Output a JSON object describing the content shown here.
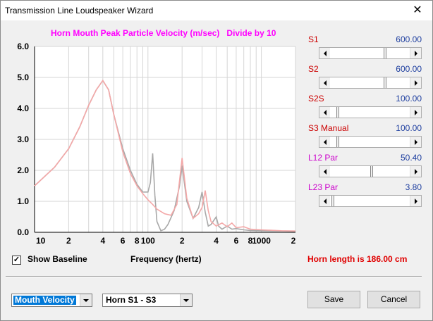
{
  "window": {
    "title": "Transmission Line Loudspeaker Wizard",
    "close_glyph": "✕"
  },
  "chart_data": {
    "type": "line",
    "title": "Horn Mouth Peak Particle Velocity (m/sec)   Divide by 10",
    "xlabel": "Frequency (hertz)",
    "x_scale": "log",
    "xlim": [
      10,
      2000
    ],
    "ylim": [
      0,
      6
    ],
    "y_ticks": [
      "0.0",
      "1.0",
      "2.0",
      "3.0",
      "4.0",
      "5.0",
      "6.0"
    ],
    "x_tick_labels": [
      "10",
      "2",
      "4",
      "6",
      "8",
      "100",
      "2",
      "4",
      "6",
      "8",
      "1000",
      "2"
    ],
    "grid": true,
    "series": [
      {
        "color": "#f4a8a8",
        "x": [
          10,
          15,
          20,
          25,
          30,
          35,
          40,
          45,
          50,
          60,
          70,
          80,
          90,
          100,
          110,
          120,
          140,
          160,
          180,
          200,
          220,
          250,
          280,
          300,
          320,
          340,
          360,
          400,
          450,
          500,
          550,
          600,
          700,
          800,
          1000,
          1500,
          2000
        ],
        "y": [
          1.5,
          2.1,
          2.7,
          3.4,
          4.1,
          4.6,
          4.9,
          4.6,
          3.8,
          2.6,
          1.9,
          1.5,
          1.25,
          1.05,
          0.9,
          0.75,
          0.6,
          0.55,
          0.9,
          2.4,
          1.1,
          0.45,
          0.6,
          0.8,
          1.35,
          0.7,
          0.35,
          0.2,
          0.3,
          0.18,
          0.3,
          0.15,
          0.18,
          0.1,
          0.08,
          0.05,
          0.04
        ]
      },
      {
        "color": "#a8a8a8",
        "x": [
          10,
          15,
          20,
          25,
          30,
          35,
          40,
          45,
          50,
          60,
          70,
          80,
          90,
          100,
          105,
          110,
          115,
          120,
          130,
          140,
          150,
          170,
          190,
          200,
          220,
          250,
          280,
          300,
          320,
          340,
          360,
          400,
          420,
          450,
          500,
          550,
          600,
          700,
          800,
          1000,
          1500,
          2000
        ],
        "y": [
          1.5,
          2.1,
          2.7,
          3.4,
          4.1,
          4.6,
          4.9,
          4.6,
          3.8,
          2.7,
          2.0,
          1.55,
          1.3,
          1.3,
          1.6,
          2.55,
          1.2,
          0.35,
          0.05,
          0.1,
          0.25,
          0.7,
          1.5,
          2.15,
          1.0,
          0.45,
          0.8,
          1.3,
          0.65,
          0.2,
          0.25,
          0.5,
          0.2,
          0.1,
          0.2,
          0.1,
          0.12,
          0.08,
          0.06,
          0.05,
          0.04,
          0.03
        ]
      }
    ]
  },
  "sliders": [
    {
      "label": "S1",
      "value": "600.00",
      "position": 0.69,
      "label_color": "#cc0000"
    },
    {
      "label": "S2",
      "value": "600.00",
      "position": 0.69,
      "label_color": "#cc0000"
    },
    {
      "label": "S2S",
      "value": "100.00",
      "position": 0.08,
      "label_color": "#cc0000"
    },
    {
      "label": "S3  Manual",
      "value": "100.00",
      "position": 0.08,
      "label_color": "#cc0000"
    },
    {
      "label": "L12  Par",
      "value": "50.40",
      "position": 0.52,
      "label_color": "#cc00cc"
    },
    {
      "label": "L23  Par",
      "value": "3.80",
      "position": 0.02,
      "label_color": "#cc00cc"
    }
  ],
  "controls": {
    "show_baseline_label": "Show Baseline",
    "show_baseline_checked": true,
    "horn_length_text": "Horn length is 186.00 cm",
    "plot_select": "Mouth Velocity",
    "horn_select": "Horn S1 - S3",
    "save_label": "Save",
    "cancel_label": "Cancel"
  }
}
